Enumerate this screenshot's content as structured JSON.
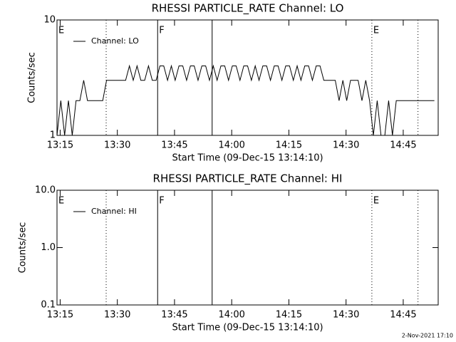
{
  "chart_data": [
    {
      "type": "line",
      "title": "RHESSI PARTICLE_RATE Channel: LO",
      "xlabel": "Start Time (09-Dec-15 13:14:10)",
      "ylabel": "Counts/sec",
      "x": [
        0,
        1,
        2,
        3,
        4,
        5,
        6,
        7,
        8,
        9,
        10,
        11,
        12,
        13,
        14,
        15,
        16,
        17,
        18,
        19,
        20,
        21,
        22,
        23,
        24,
        25,
        26,
        27,
        28,
        29,
        30,
        31,
        32,
        33,
        34,
        35,
        36,
        37,
        38,
        39,
        40,
        41,
        42,
        43,
        44,
        45,
        46,
        47,
        48,
        49,
        50,
        51,
        52,
        53,
        54,
        55,
        56,
        57,
        58,
        59,
        60,
        61,
        62,
        63,
        64,
        65,
        66,
        67,
        68,
        69,
        70,
        71,
        72,
        73,
        74,
        75,
        76,
        77,
        78,
        79,
        80,
        81,
        82,
        83,
        84,
        85,
        86,
        87,
        88,
        89,
        90,
        91,
        92,
        93,
        94,
        95,
        96,
        97,
        98,
        99
      ],
      "series": [
        {
          "name": "Channel: LO",
          "color": "#000000",
          "values": [
            1,
            2,
            1,
            2,
            1,
            2,
            2,
            3,
            2,
            2,
            2,
            2,
            2,
            3,
            3,
            3,
            3,
            3,
            3,
            4,
            3,
            4,
            3,
            3,
            4,
            3,
            3,
            4,
            4,
            3,
            4,
            3,
            4,
            4,
            3,
            4,
            4,
            3,
            4,
            4,
            3,
            4,
            3,
            4,
            4,
            3,
            4,
            4,
            3,
            4,
            4,
            3,
            4,
            3,
            4,
            4,
            3,
            4,
            4,
            3,
            4,
            4,
            3,
            4,
            3,
            4,
            4,
            3,
            4,
            4,
            3,
            3,
            3,
            3,
            2,
            3,
            2,
            3,
            3,
            3,
            2,
            3,
            2,
            1,
            2,
            1,
            1,
            2,
            1,
            2,
            2,
            2,
            2,
            2,
            2,
            2,
            2,
            2,
            2,
            2
          ]
        }
      ],
      "xlim": [
        0,
        100
      ],
      "xticks": [
        {
          "value": 0.83,
          "label": "13:15"
        },
        {
          "value": 15.83,
          "label": "13:30"
        },
        {
          "value": 30.83,
          "label": "13:45"
        },
        {
          "value": 45.83,
          "label": "14:00"
        },
        {
          "value": 60.83,
          "label": "14:15"
        },
        {
          "value": 75.83,
          "label": "14:30"
        },
        {
          "value": 90.83,
          "label": "14:45"
        }
      ],
      "ylim": [
        1,
        10
      ],
      "yticks": [
        1,
        10
      ],
      "log_y": true,
      "legend": "upper left",
      "markers": [
        {
          "x": 12.9,
          "style": "dotted"
        },
        {
          "x": 26.4,
          "style": "solid"
        },
        {
          "x": 40.7,
          "style": "solid"
        },
        {
          "x": 82.6,
          "style": "dotted"
        },
        {
          "x": 94.7,
          "style": "dotted"
        }
      ],
      "annotations": [
        {
          "text": "E",
          "x": 0
        },
        {
          "text": "F",
          "x": 26.4
        },
        {
          "text": "E",
          "x": 82.6
        }
      ]
    },
    {
      "type": "line",
      "title": "RHESSI PARTICLE_RATE Channel: HI",
      "xlabel": "Start Time (09-Dec-15 13:14:10)",
      "ylabel": "Counts/sec",
      "x": [],
      "series": [
        {
          "name": "Channel: HI",
          "color": "#000000",
          "values": []
        }
      ],
      "xlim": [
        0,
        100
      ],
      "xticks": [
        {
          "value": 0.83,
          "label": "13:15"
        },
        {
          "value": 15.83,
          "label": "13:30"
        },
        {
          "value": 30.83,
          "label": "13:45"
        },
        {
          "value": 45.83,
          "label": "14:00"
        },
        {
          "value": 60.83,
          "label": "14:15"
        },
        {
          "value": 75.83,
          "label": "14:30"
        },
        {
          "value": 90.83,
          "label": "14:45"
        }
      ],
      "ylim": [
        0.1,
        10
      ],
      "yticks": [
        {
          "value": 0.1,
          "label": "0.1"
        },
        {
          "value": 1,
          "label": "1.0"
        },
        {
          "value": 10,
          "label": "10.0"
        }
      ],
      "log_y": true,
      "legend": "upper left",
      "markers": [
        {
          "x": 12.9,
          "style": "dotted"
        },
        {
          "x": 26.4,
          "style": "solid"
        },
        {
          "x": 40.7,
          "style": "solid"
        },
        {
          "x": 82.6,
          "style": "dotted"
        },
        {
          "x": 94.7,
          "style": "dotted"
        }
      ],
      "annotations": [
        {
          "text": "E",
          "x": 0
        },
        {
          "text": "F",
          "x": 26.4
        },
        {
          "text": "E",
          "x": 82.6
        }
      ]
    }
  ],
  "footer": "2-Nov-2021 17:10"
}
